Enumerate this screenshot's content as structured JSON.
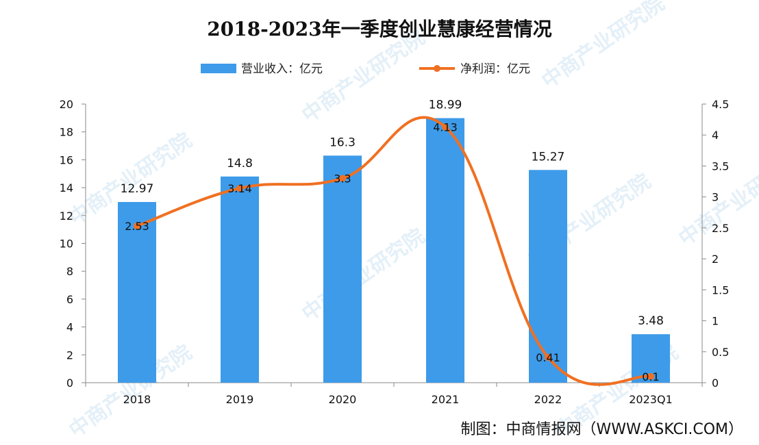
{
  "chart_data": {
    "type": "bar",
    "title": "2018-2023年一季度创业慧康经营情况",
    "categories": [
      "2018",
      "2019",
      "2020",
      "2021",
      "2022",
      "2023Q1"
    ],
    "series": [
      {
        "name": "营业收入：亿元",
        "kind": "bar",
        "axis": "left",
        "color": "#3d9be9",
        "values": [
          12.97,
          14.8,
          16.3,
          18.99,
          15.27,
          3.48
        ]
      },
      {
        "name": "净利润：亿元",
        "kind": "line",
        "axis": "right",
        "color": "#f07022",
        "values": [
          2.53,
          3.14,
          3.3,
          4.13,
          0.41,
          0.1
        ]
      }
    ],
    "bar_labels": [
      "12.97",
      "14.8",
      "16.3",
      "18.99",
      "15.27",
      "3.48"
    ],
    "line_labels": [
      "2.53",
      "3.14",
      "3.3",
      "4.13",
      "0.41",
      "0.1"
    ],
    "y_left": {
      "min": 0,
      "max": 20,
      "ticks": [
        "0",
        "2",
        "4",
        "6",
        "8",
        "10",
        "12",
        "14",
        "16",
        "18",
        "20"
      ]
    },
    "y_right": {
      "min": 0,
      "max": 4.5,
      "ticks": [
        "0",
        "0.5",
        "1",
        "1.5",
        "2",
        "2.5",
        "3",
        "3.5",
        "4",
        "4.5"
      ]
    },
    "legend_position": "top",
    "grid": false
  },
  "source": "制图：中商情报网（WWW.ASKCI.COM）",
  "watermark": "中商产业研究院"
}
